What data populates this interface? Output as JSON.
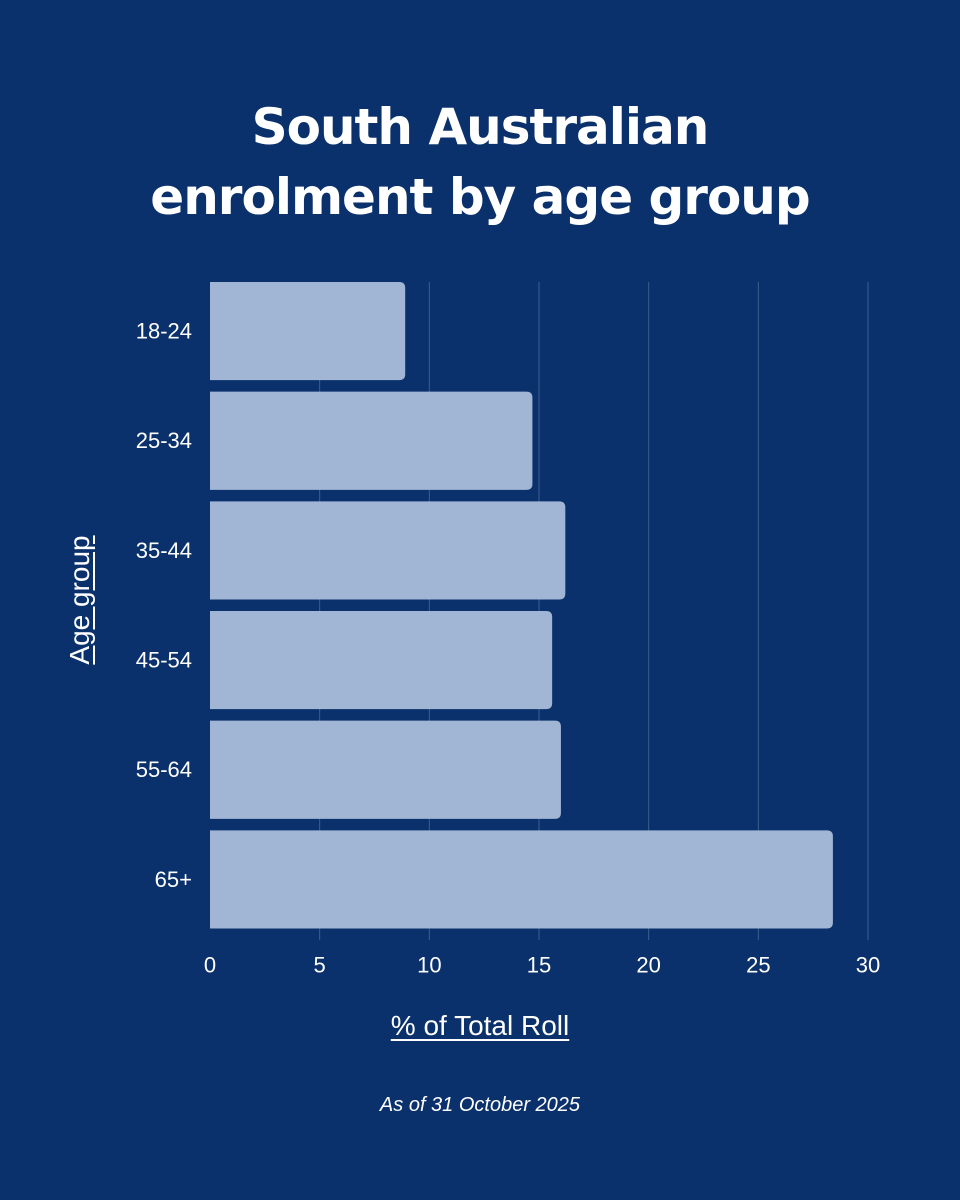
{
  "chart_data": {
    "type": "bar",
    "orientation": "horizontal",
    "title": [
      "South Australian",
      "enrolment by age group"
    ],
    "categories": [
      "18-24",
      "25-34",
      "35-44",
      "45-54",
      "55-64",
      "65+"
    ],
    "values": [
      8.9,
      14.7,
      16.2,
      15.6,
      16.0,
      28.4
    ],
    "xlabel": "% of Total Roll",
    "ylabel": "Age group",
    "xlim": [
      0,
      30
    ],
    "xticks": [
      0,
      5,
      10,
      15,
      20,
      25,
      30
    ],
    "grid": true,
    "note": "As of 31 October 2025",
    "colors": {
      "background": "#0a316b",
      "bar": "#a1b5d5",
      "grid": "#3e5f8f",
      "text": "#ffffff"
    }
  }
}
